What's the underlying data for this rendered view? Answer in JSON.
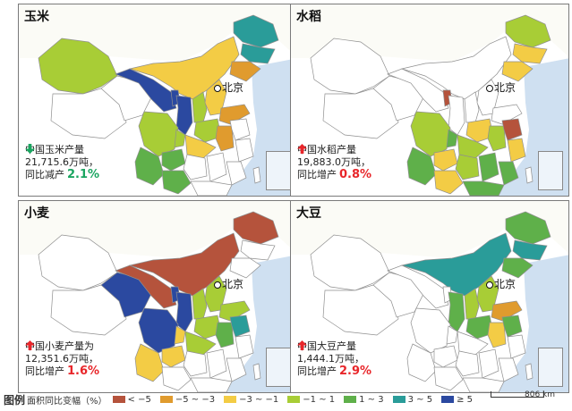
{
  "colors": {
    "lt_-5": "#b5533c",
    "-5_-3": "#e09b2e",
    "-3_-1": "#f3cc45",
    "-1_1": "#a8cd36",
    "1_3": "#5fb04a",
    "3_5": "#2a9c99",
    "gte_5": "#2b49a0",
    "none": "#ffffff",
    "sea": "#cfe0f1",
    "up": "#e8262a",
    "down": "#1aa560"
  },
  "capital_label": "北京",
  "panels": [
    {
      "id": "corn",
      "title": "玉米",
      "line1": "中国玉米产量",
      "line2": "21,715.6万吨，",
      "change_label": "同比减产",
      "direction": "down",
      "pct": "2.1%",
      "regions": {
        "xinjiang": "-1_1",
        "xizang": "none",
        "qinghai": "none",
        "gansu": "gte_5",
        "neimenggu": "-3_-1",
        "ningxia": "gte_5",
        "shaanxi": "gte_5",
        "shanxi": "-1_1",
        "hebei": "-3_-1",
        "shandong": "-5_-3",
        "henan": "-1_1",
        "heilongjiang": "3_5",
        "jilin": "3_5",
        "liaoning": "-5_-3",
        "sichuan": "-1_1",
        "chongqing": "-1_1",
        "yunnan": "1_3",
        "guizhou": "1_3",
        "hubei": "-3_-1",
        "hunan": "none",
        "jiangxi": "none",
        "anhui": "-5_-3",
        "jiangsu": "none",
        "zhejiang": "none",
        "fujian": "none",
        "guangdong": "none",
        "guangxi": "1_3",
        "hainan": "none",
        "taiwan": "none"
      }
    },
    {
      "id": "rice",
      "title": "水稻",
      "line1": "中国水稻产量",
      "line2": "19,883.0万吨，",
      "change_label": "同比增产",
      "direction": "up",
      "pct": "0.8%",
      "regions": {
        "xinjiang": "none",
        "xizang": "none",
        "qinghai": "none",
        "gansu": "none",
        "neimenggu": "none",
        "ningxia": "lt_-5",
        "shaanxi": "none",
        "shanxi": "none",
        "hebei": "none",
        "shandong": "none",
        "henan": "-3_-1",
        "heilongjiang": "-1_1",
        "jilin": "-3_-1",
        "liaoning": "-3_-1",
        "sichuan": "-1_1",
        "chongqing": "1_3",
        "yunnan": "1_3",
        "guizhou": "-3_-1",
        "hubei": "-1_1",
        "hunan": "-1_1",
        "jiangxi": "1_3",
        "anhui": "-1_1",
        "jiangsu": "lt_-5",
        "zhejiang": "-3_-1",
        "fujian": "1_3",
        "guangdong": "1_3",
        "guangxi": "-3_-1",
        "hainan": "1_3",
        "taiwan": "none"
      }
    },
    {
      "id": "wheat",
      "title": "小麦",
      "line1": "中国小麦产量为",
      "line2": "12,351.6万吨，",
      "change_label": "同比增产",
      "direction": "up",
      "pct": "1.6%",
      "regions": {
        "xinjiang": "none",
        "xizang": "none",
        "qinghai": "gte_5",
        "gansu": "lt_-5",
        "neimenggu": "lt_-5",
        "ningxia": "gte_5",
        "shaanxi": "gte_5",
        "shanxi": "-1_1",
        "hebei": "-1_1",
        "shandong": "-1_1",
        "henan": "-1_1",
        "heilongjiang": "lt_-5",
        "jilin": "none",
        "liaoning": "none",
        "sichuan": "gte_5",
        "chongqing": "-3_-1",
        "yunnan": "-3_-1",
        "guizhou": "-3_-1",
        "hubei": "-1_1",
        "hunan": "none",
        "jiangxi": "none",
        "anhui": "1_3",
        "jiangsu": "3_5",
        "zhejiang": "none",
        "fujian": "none",
        "guangdong": "none",
        "guangxi": "none",
        "hainan": "none",
        "taiwan": "none"
      }
    },
    {
      "id": "soy",
      "title": "大豆",
      "line1": "中国大豆产量",
      "line2": "1,444.1万吨，",
      "change_label": "同比增产",
      "direction": "up",
      "pct": "2.9%",
      "regions": {
        "xinjiang": "none",
        "xizang": "none",
        "qinghai": "none",
        "gansu": "none",
        "neimenggu": "3_5",
        "ningxia": "none",
        "shaanxi": "1_3",
        "shanxi": "-1_1",
        "hebei": "-1_1",
        "shandong": "-5_-3",
        "henan": "1_3",
        "heilongjiang": "1_3",
        "jilin": "3_5",
        "liaoning": "1_3",
        "sichuan": "none",
        "chongqing": "none",
        "yunnan": "none",
        "guizhou": "none",
        "hubei": "none",
        "hunan": "none",
        "jiangxi": "none",
        "anhui": "-3_-1",
        "jiangsu": "1_3",
        "zhejiang": "none",
        "fujian": "none",
        "guangdong": "none",
        "guangxi": "none",
        "hainan": "none",
        "taiwan": "none"
      }
    }
  ],
  "legend": {
    "title": "图例",
    "subtitle": "面积同比变幅（%）",
    "items": [
      {
        "key": "lt_-5",
        "label": "< −5"
      },
      {
        "key": "-5_-3",
        "label": "−5 ~ −3"
      },
      {
        "key": "-3_-1",
        "label": "−3 ~ −1"
      },
      {
        "key": "-1_1",
        "label": "−1 ~ 1"
      },
      {
        "key": "1_3",
        "label": "1 ~ 3"
      },
      {
        "key": "3_5",
        "label": "3 ~ 5"
      },
      {
        "key": "gte_5",
        "label": "≥ 5"
      }
    ],
    "scale_label": "806 km"
  }
}
